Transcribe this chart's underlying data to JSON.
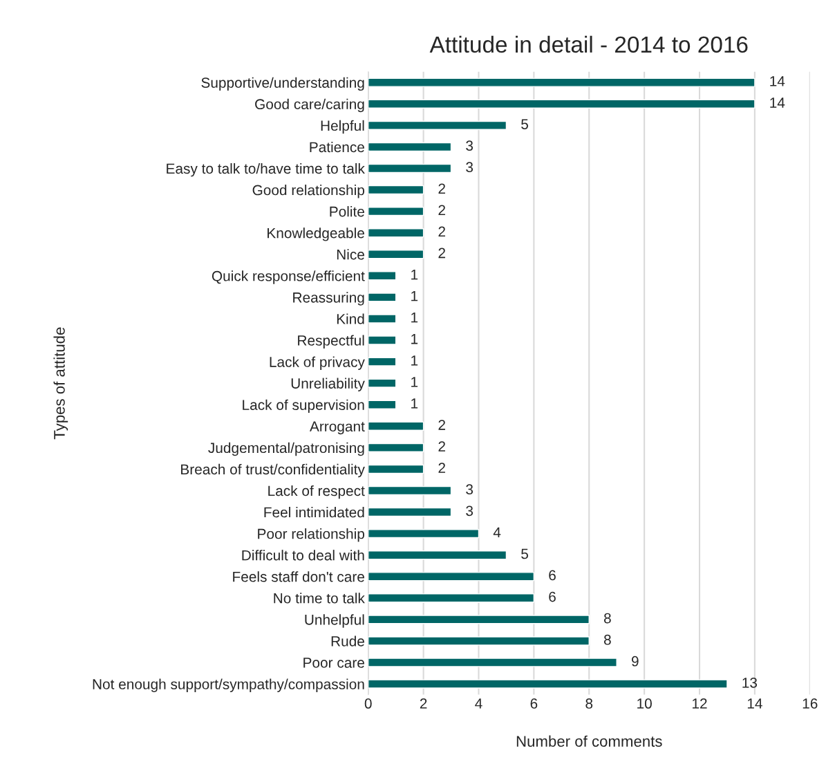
{
  "chart_data": {
    "type": "bar",
    "orientation": "horizontal",
    "title": "Attitude in detail - 2014 to 2016",
    "xlabel": "Number of comments",
    "ylabel": "Types of attitude",
    "categories": [
      "Supportive/understanding",
      "Good care/caring",
      "Helpful",
      "Patience",
      "Easy to talk to/have time to talk",
      "Good relationship",
      "Polite",
      "Knowledgeable",
      "Nice",
      "Quick response/efficient",
      "Reassuring",
      "Kind",
      "Respectful",
      "Lack of privacy",
      "Unreliability",
      "Lack of supervision",
      "Arrogant",
      "Judgemental/patronising",
      "Breach of trust/confidentiality",
      "Lack of respect",
      "Feel intimidated",
      "Poor relationship",
      "Difficult to deal with",
      "Feels staff don't care",
      "No time to talk",
      "Unhelpful",
      "Rude",
      "Poor care",
      "Not enough support/sympathy/compassion"
    ],
    "values": [
      14,
      14,
      5,
      3,
      3,
      2,
      2,
      2,
      2,
      1,
      1,
      1,
      1,
      1,
      1,
      1,
      2,
      2,
      2,
      3,
      3,
      4,
      5,
      6,
      6,
      8,
      8,
      9,
      13
    ],
    "color": "#006666",
    "xlim": [
      0,
      16
    ],
    "xticks": [
      0,
      2,
      4,
      6,
      8,
      10,
      12,
      14,
      16
    ],
    "grid": "x",
    "data_labels": true
  }
}
